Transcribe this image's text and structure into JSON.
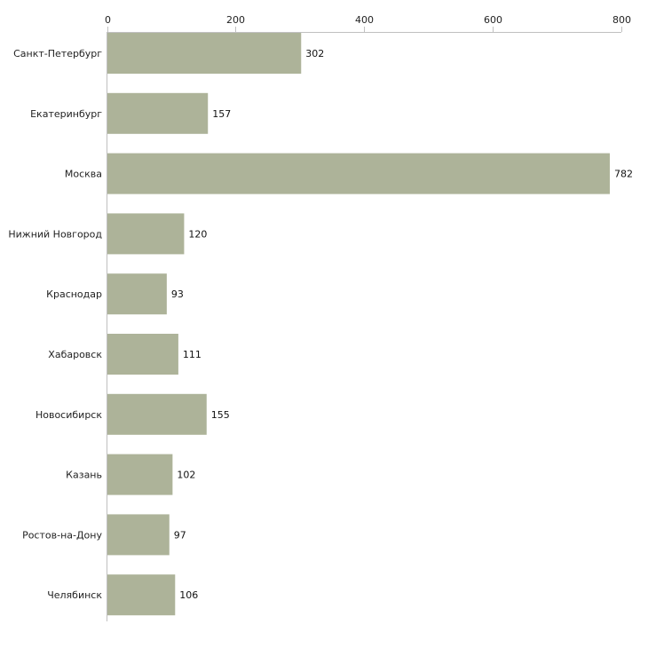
{
  "chart_data": {
    "type": "bar",
    "orientation": "horizontal",
    "title": "",
    "xlabel": "",
    "ylabel": "",
    "xlim": [
      0,
      800
    ],
    "ticks": [
      0,
      200,
      400,
      600,
      800
    ],
    "tick_labels": [
      "0",
      "200",
      "400",
      "600",
      "800"
    ],
    "grid": false,
    "legend": "none",
    "categories": [
      "Санкт-Петербург",
      "Екатеринбург",
      "Москва",
      "Нижний Новгород",
      "Краснодар",
      "Хабаровск",
      "Новосибирск",
      "Казань",
      "Ростов-на-Дону",
      "Челябинск"
    ],
    "values": [
      302,
      157,
      782,
      120,
      93,
      111,
      155,
      102,
      97,
      106
    ],
    "value_labels": [
      "302",
      "157",
      "782",
      "120",
      "93",
      "111",
      "155",
      "102",
      "97",
      "106"
    ]
  },
  "colors": {
    "bar": "#adb399",
    "axis": "#c0c0c0",
    "text": "#222222"
  }
}
